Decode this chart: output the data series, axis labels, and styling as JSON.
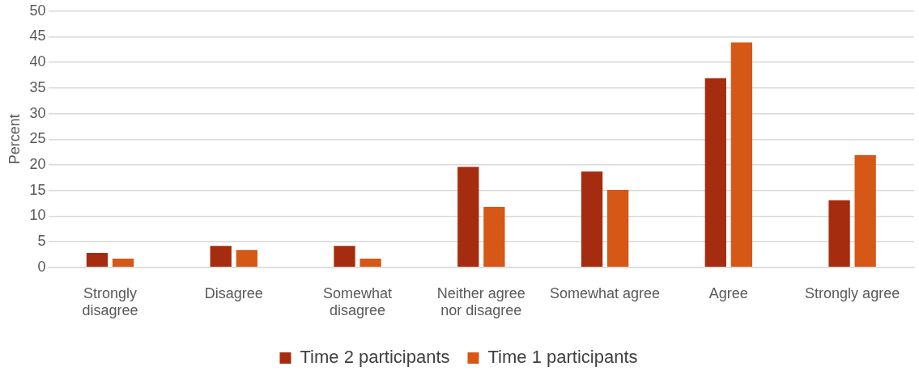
{
  "chart_data": {
    "type": "bar",
    "ylabel": "Percent",
    "categories": [
      "Strongly disagree",
      "Disagree",
      "Somewhat disagree",
      "Neither agree nor disagree",
      "Somewhat agree",
      "Agree",
      "Strongly agree"
    ],
    "series": [
      {
        "name": "Time 2 participants",
        "color": "#a52c0f",
        "values": [
          2.8,
          4.2,
          4.2,
          19.6,
          18.7,
          36.9,
          13.1
        ]
      },
      {
        "name": "Time 1 participants",
        "color": "#d55817",
        "values": [
          1.7,
          3.4,
          1.7,
          11.8,
          15.1,
          43.9,
          21.9
        ]
      }
    ],
    "ylim": [
      0,
      50
    ],
    "yticks": [
      0,
      5,
      10,
      15,
      20,
      25,
      30,
      35,
      40,
      45,
      50
    ],
    "grid": "y",
    "legend": "bottom"
  }
}
